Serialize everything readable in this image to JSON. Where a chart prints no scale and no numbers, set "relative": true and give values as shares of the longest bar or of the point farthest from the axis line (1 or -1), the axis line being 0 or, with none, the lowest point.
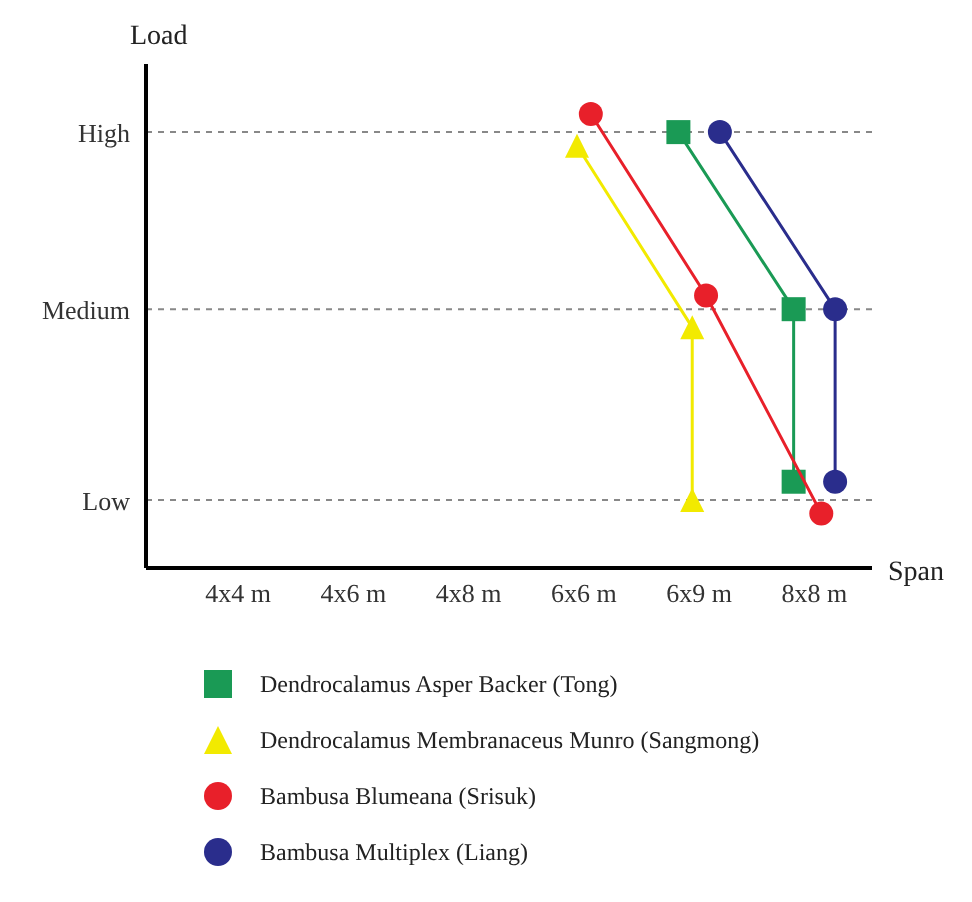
{
  "chart_data": {
    "type": "line",
    "xlabel": "Span",
    "ylabel": "Load",
    "relative": true,
    "categories": [
      "4x4 m",
      "4x6 m",
      "4x8 m",
      "6x6 m",
      "6x9 m",
      "8x8 m"
    ],
    "ref_lines": [
      {
        "axis": "y",
        "value": 0.96,
        "label": "High",
        "line_style": "dashed",
        "color": "#888888"
      },
      {
        "axis": "y",
        "value": 0.57,
        "label": "Medium",
        "line_style": "dashed",
        "color": "#888888"
      },
      {
        "axis": "y",
        "value": 0.15,
        "label": "Low",
        "line_style": "dashed",
        "color": "#888888"
      }
    ],
    "legend": "bottom",
    "line_style": "solid",
    "series": [
      {
        "name": "Dendrocalamus Asper Backer (Tong)",
        "color": "#1a9a55",
        "marker": "square",
        "x": [
          "6x9 m",
          "8x8 m",
          "8x8 m"
        ],
        "values": [
          0.96,
          0.57,
          0.19
        ]
      },
      {
        "name": "Dendrocalamus Membranaceus Munro (Sangmong)",
        "color": "#f2ea00",
        "marker": "triangle",
        "x": [
          "6x6 m",
          "6x9 m",
          "6x9 m"
        ],
        "values": [
          0.93,
          0.53,
          0.15
        ]
      },
      {
        "name": "Bambusa Blumeana (Srisuk)",
        "color": "#e8202a",
        "marker": "circle",
        "x": [
          "6x6 m",
          "6x9 m",
          "8x8 m"
        ],
        "values": [
          1.0,
          0.6,
          0.12
        ]
      },
      {
        "name": "Bambusa Multiplex (Liang)",
        "color": "#2a2d8c",
        "marker": "circle",
        "x": [
          "6x9 m",
          "8x8 m",
          "8x8 m"
        ],
        "values": [
          0.96,
          0.57,
          0.19
        ]
      }
    ]
  }
}
